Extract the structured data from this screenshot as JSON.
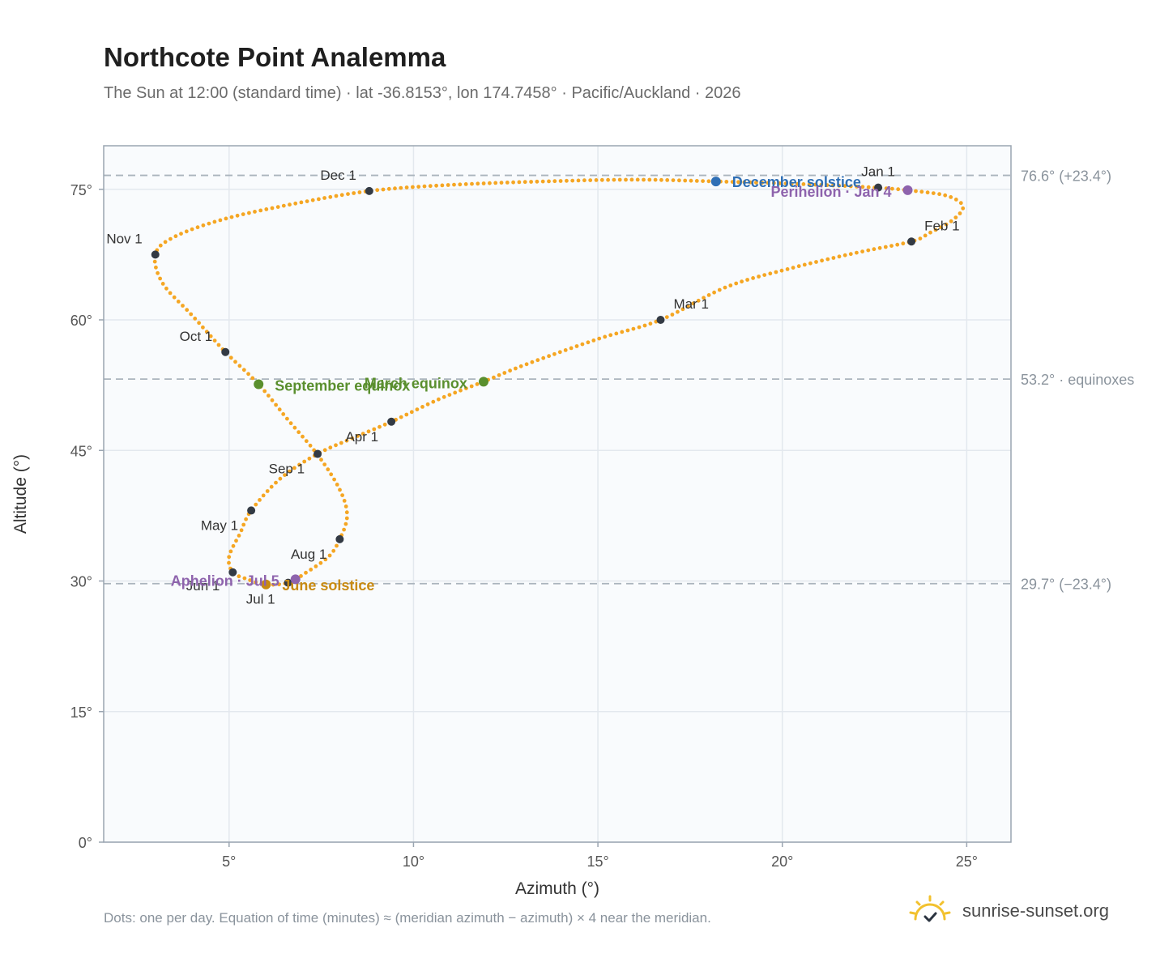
{
  "header": {
    "title": "Northcote Point Analemma",
    "subtitle": "The Sun at 12:00 (standard time) · lat -36.8153°, lon 174.7458° · Pacific/Auckland · 2026"
  },
  "footer": {
    "note": "Dots: one per day. Equation of time (minutes) ≈ (meridian azimuth − azimuth) × 4 near the meridian.",
    "brand": "sunrise-sunset.org"
  },
  "colors": {
    "curve": "#f5a623",
    "month_dot": "#333a44",
    "equinox": "#5a8f2e",
    "december_solstice": "#2f6fb5",
    "june_solstice": "#c88a12",
    "apsis": "#8e63ad",
    "ref_line": "#aab4bd",
    "plot_bg": "#f9fbfd",
    "grid": "#e3e8ee",
    "frame": "#9aa5b1"
  },
  "chart_data": {
    "type": "scatter",
    "title": "Northcote Point Analemma",
    "xlabel": "Azimuth (°)",
    "ylabel": "Altitude (°)",
    "xlim": [
      1.6,
      26.2
    ],
    "ylim": [
      0,
      80
    ],
    "x_ticks": [
      {
        "value": 5,
        "label": "5°"
      },
      {
        "value": 10,
        "label": "10°"
      },
      {
        "value": 15,
        "label": "15°"
      },
      {
        "value": 20,
        "label": "20°"
      },
      {
        "value": 25,
        "label": "25°"
      }
    ],
    "y_ticks": [
      {
        "value": 0,
        "label": "0°"
      },
      {
        "value": 15,
        "label": "15°"
      },
      {
        "value": 30,
        "label": "30°"
      },
      {
        "value": 45,
        "label": "45°"
      },
      {
        "value": 60,
        "label": "60°"
      },
      {
        "value": 75,
        "label": "75°"
      }
    ],
    "grid": true,
    "reference_lines": [
      {
        "y": 76.6,
        "label": "76.6° (+23.4°)"
      },
      {
        "y": 53.2,
        "label": "53.2° · equinoxes"
      },
      {
        "y": 29.7,
        "label": "29.7° (−23.4°)"
      }
    ],
    "curve": {
      "description": "Analemma, one point per day of 2026",
      "points": [
        [
          22.5,
          75.2
        ],
        [
          23.6,
          74.8
        ],
        [
          24.5,
          74.2
        ],
        [
          24.9,
          73.0
        ],
        [
          24.6,
          71.4
        ],
        [
          24.0,
          70.0
        ],
        [
          23.5,
          69.0
        ],
        [
          22.0,
          67.7
        ],
        [
          20.3,
          66.0
        ],
        [
          18.5,
          63.8
        ],
        [
          16.7,
          60.0
        ],
        [
          15.0,
          57.8
        ],
        [
          13.0,
          54.8
        ],
        [
          11.9,
          52.9
        ],
        [
          10.7,
          50.9
        ],
        [
          9.4,
          48.3
        ],
        [
          8.4,
          46.5
        ],
        [
          7.4,
          44.6
        ],
        [
          6.4,
          41.8
        ],
        [
          5.6,
          38.1
        ],
        [
          5.3,
          35.5
        ],
        [
          5.0,
          32.8
        ],
        [
          5.1,
          31.0
        ],
        [
          5.5,
          30.2
        ],
        [
          6.0,
          29.6
        ],
        [
          6.6,
          29.8
        ],
        [
          7.1,
          31.0
        ],
        [
          7.7,
          32.8
        ],
        [
          8.0,
          34.8
        ],
        [
          8.2,
          37.5
        ],
        [
          8.0,
          40.5
        ],
        [
          7.4,
          44.5
        ],
        [
          6.6,
          48.5
        ],
        [
          5.8,
          52.6
        ],
        [
          4.9,
          56.3
        ],
        [
          4.0,
          60.5
        ],
        [
          3.2,
          64.2
        ],
        [
          3.0,
          67.5
        ],
        [
          3.5,
          69.5
        ],
        [
          4.8,
          71.5
        ],
        [
          6.6,
          73.2
        ],
        [
          8.8,
          74.8
        ],
        [
          11.0,
          75.5
        ],
        [
          13.5,
          75.9
        ],
        [
          16.0,
          76.1
        ],
        [
          18.2,
          75.9
        ],
        [
          20.5,
          75.6
        ],
        [
          22.5,
          75.2
        ]
      ]
    },
    "month_markers": [
      {
        "label": "Jan 1",
        "x": 22.6,
        "y": 75.2,
        "anchor": "middle",
        "dx": 0,
        "dy": -14
      },
      {
        "label": "Feb 1",
        "x": 23.5,
        "y": 69.0,
        "anchor": "start",
        "dx": 16,
        "dy": -14
      },
      {
        "label": "Mar 1",
        "x": 16.7,
        "y": 60.0,
        "anchor": "start",
        "dx": 16,
        "dy": -14
      },
      {
        "label": "Apr 1",
        "x": 9.4,
        "y": 48.3,
        "anchor": "end",
        "dx": -16,
        "dy": 24
      },
      {
        "label": "May 1",
        "x": 5.6,
        "y": 38.1,
        "anchor": "end",
        "dx": -16,
        "dy": 24
      },
      {
        "label": "Jun 1",
        "x": 5.1,
        "y": 31.0,
        "anchor": "end",
        "dx": -16,
        "dy": 22
      },
      {
        "label": "Jul 1",
        "x": 6.6,
        "y": 29.8,
        "anchor": "end",
        "dx": -16,
        "dy": 26
      },
      {
        "label": "Aug 1",
        "x": 8.0,
        "y": 34.8,
        "anchor": "end",
        "dx": -16,
        "dy": 24
      },
      {
        "label": "Sep 1",
        "x": 7.4,
        "y": 44.6,
        "anchor": "end",
        "dx": -16,
        "dy": 24
      },
      {
        "label": "Oct 1",
        "x": 4.9,
        "y": 56.3,
        "anchor": "end",
        "dx": -16,
        "dy": -14
      },
      {
        "label": "Nov 1",
        "x": 3.0,
        "y": 67.5,
        "anchor": "end",
        "dx": -16,
        "dy": -14
      },
      {
        "label": "Dec 1",
        "x": 8.8,
        "y": 74.8,
        "anchor": "end",
        "dx": -16,
        "dy": -14
      }
    ],
    "events": [
      {
        "label": "December solstice",
        "x": 18.2,
        "y": 75.9,
        "color_key": "december_solstice",
        "anchor": "start",
        "dx": 20,
        "dy": 7
      },
      {
        "label": "Perihelion · Jan 4",
        "x": 23.4,
        "y": 74.9,
        "color_key": "apsis",
        "anchor": "end",
        "dx": -20,
        "dy": 8
      },
      {
        "label": "March equinox",
        "x": 11.9,
        "y": 52.9,
        "color_key": "equinox",
        "anchor": "end",
        "dx": -20,
        "dy": 8
      },
      {
        "label": "September equinox",
        "x": 5.8,
        "y": 52.6,
        "color_key": "equinox",
        "anchor": "start",
        "dx": 20,
        "dy": 8
      },
      {
        "label": "June solstice",
        "x": 6.0,
        "y": 29.6,
        "color_key": "june_solstice",
        "anchor": "start",
        "dx": 20,
        "dy": 7
      },
      {
        "label": "Aphelion · Jul 5",
        "x": 6.8,
        "y": 30.2,
        "color_key": "apsis",
        "anchor": "end",
        "dx": -20,
        "dy": 8
      }
    ]
  }
}
